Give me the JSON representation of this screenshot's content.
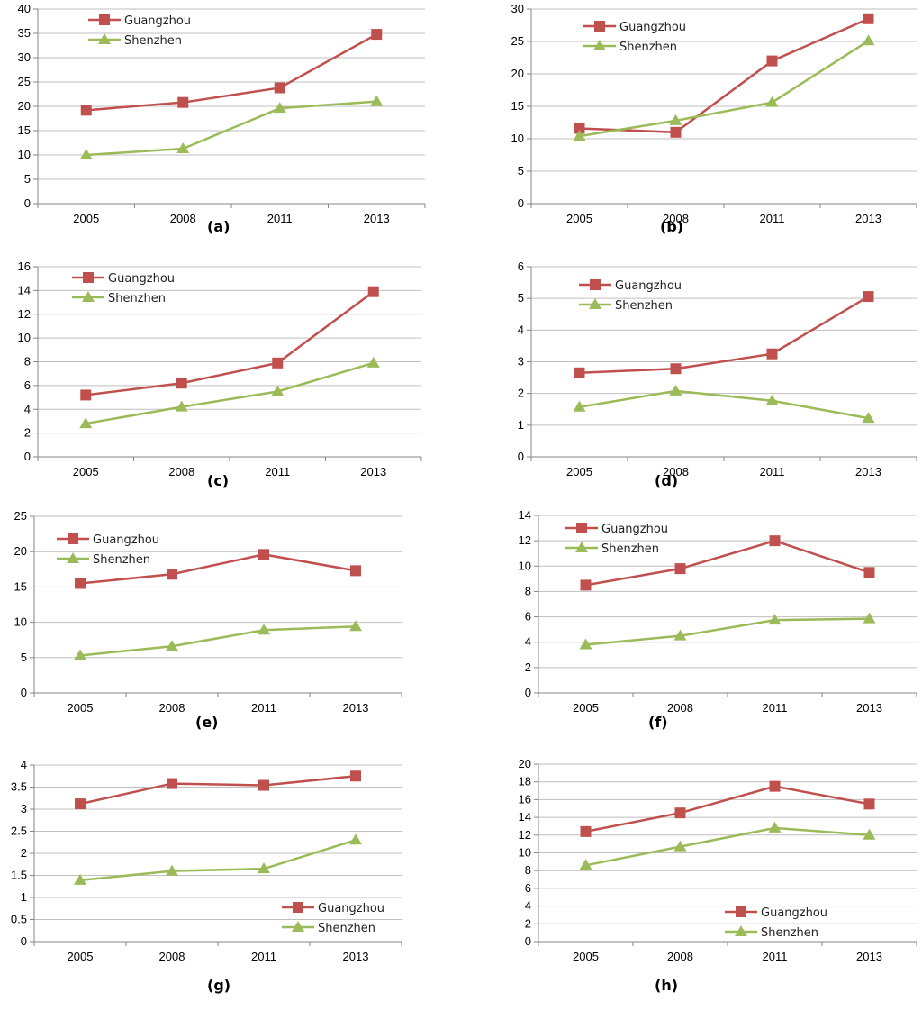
{
  "colors": {
    "guangzhou": "#c0504d",
    "shenzhen": "#9bbb59",
    "grid": "#bfbfbf",
    "axis": "#868686"
  },
  "chart_data": [
    {
      "id": "a",
      "type": "line",
      "caption": "(a)",
      "categories": [
        "2005",
        "2008",
        "2011",
        "2013"
      ],
      "ylim": [
        0,
        40
      ],
      "ystep": 5,
      "legend_position": "top-left",
      "series": [
        {
          "name": "Guangzhou",
          "marker": "square",
          "values": [
            19.2,
            20.8,
            23.8,
            34.8
          ]
        },
        {
          "name": "Shenzhen",
          "marker": "triangle",
          "values": [
            10.0,
            11.3,
            19.6,
            21.0
          ]
        }
      ]
    },
    {
      "id": "b",
      "type": "line",
      "caption": "(b)",
      "categories": [
        "2005",
        "2008",
        "2011",
        "2013"
      ],
      "ylim": [
        0,
        30
      ],
      "ystep": 5,
      "legend_position": "top-left",
      "series": [
        {
          "name": "Guangzhou",
          "marker": "square",
          "values": [
            11.6,
            11.0,
            22.0,
            28.5
          ]
        },
        {
          "name": "Shenzhen",
          "marker": "triangle",
          "values": [
            10.4,
            12.8,
            15.6,
            25.1
          ]
        }
      ]
    },
    {
      "id": "c",
      "type": "line",
      "caption": "(c)",
      "categories": [
        "2005",
        "2008",
        "2011",
        "2013"
      ],
      "ylim": [
        0,
        16
      ],
      "ystep": 2,
      "legend_position": "top-left",
      "series": [
        {
          "name": "Guangzhou",
          "marker": "square",
          "values": [
            5.2,
            6.2,
            7.9,
            13.9
          ]
        },
        {
          "name": "Shenzhen",
          "marker": "triangle",
          "values": [
            2.8,
            4.2,
            5.5,
            7.9
          ]
        }
      ]
    },
    {
      "id": "d",
      "type": "line",
      "caption": "(d)",
      "categories": [
        "2005",
        "2008",
        "2011",
        "2013"
      ],
      "ylim": [
        0,
        6
      ],
      "ystep": 1,
      "legend_position": "top-left",
      "series": [
        {
          "name": "Guangzhou",
          "marker": "square",
          "values": [
            2.65,
            2.78,
            3.25,
            5.06
          ]
        },
        {
          "name": "Shenzhen",
          "marker": "triangle",
          "values": [
            1.57,
            2.08,
            1.77,
            1.22
          ]
        }
      ]
    },
    {
      "id": "e",
      "type": "line",
      "caption": "(e)",
      "categories": [
        "2005",
        "2008",
        "2011",
        "2013"
      ],
      "ylim": [
        0,
        25
      ],
      "ystep": 5,
      "legend_position": "top-left",
      "series": [
        {
          "name": "Guangzhou",
          "marker": "square",
          "values": [
            15.5,
            16.8,
            19.6,
            17.3
          ]
        },
        {
          "name": "Shenzhen",
          "marker": "triangle",
          "values": [
            5.3,
            6.6,
            8.9,
            9.4
          ]
        }
      ]
    },
    {
      "id": "f",
      "type": "line",
      "caption": "(f)",
      "categories": [
        "2005",
        "2008",
        "2011",
        "2013"
      ],
      "ylim": [
        0,
        14
      ],
      "ystep": 2,
      "legend_position": "top-left",
      "series": [
        {
          "name": "Guangzhou",
          "marker": "square",
          "values": [
            8.5,
            9.8,
            12.0,
            9.5
          ]
        },
        {
          "name": "Shenzhen",
          "marker": "triangle",
          "values": [
            3.8,
            4.5,
            5.75,
            5.85
          ]
        }
      ]
    },
    {
      "id": "g",
      "type": "line",
      "caption": "(g)",
      "categories": [
        "2005",
        "2008",
        "2011",
        "2013"
      ],
      "ylim": [
        0,
        4
      ],
      "ystep": 0.5,
      "legend_position": "bottom-right",
      "series": [
        {
          "name": "Guangzhou",
          "marker": "square",
          "values": [
            3.12,
            3.58,
            3.54,
            3.75
          ]
        },
        {
          "name": "Shenzhen",
          "marker": "triangle",
          "values": [
            1.39,
            1.6,
            1.65,
            2.3
          ]
        }
      ]
    },
    {
      "id": "h",
      "type": "line",
      "caption": "(h)",
      "categories": [
        "2005",
        "2008",
        "2011",
        "2013"
      ],
      "ylim": [
        0,
        20
      ],
      "ystep": 2,
      "legend_position": "bottom-right",
      "series": [
        {
          "name": "Guangzhou",
          "marker": "square",
          "values": [
            12.4,
            14.5,
            17.5,
            15.5
          ]
        },
        {
          "name": "Shenzhen",
          "marker": "triangle",
          "values": [
            8.6,
            10.7,
            12.8,
            12.0
          ]
        }
      ]
    }
  ]
}
